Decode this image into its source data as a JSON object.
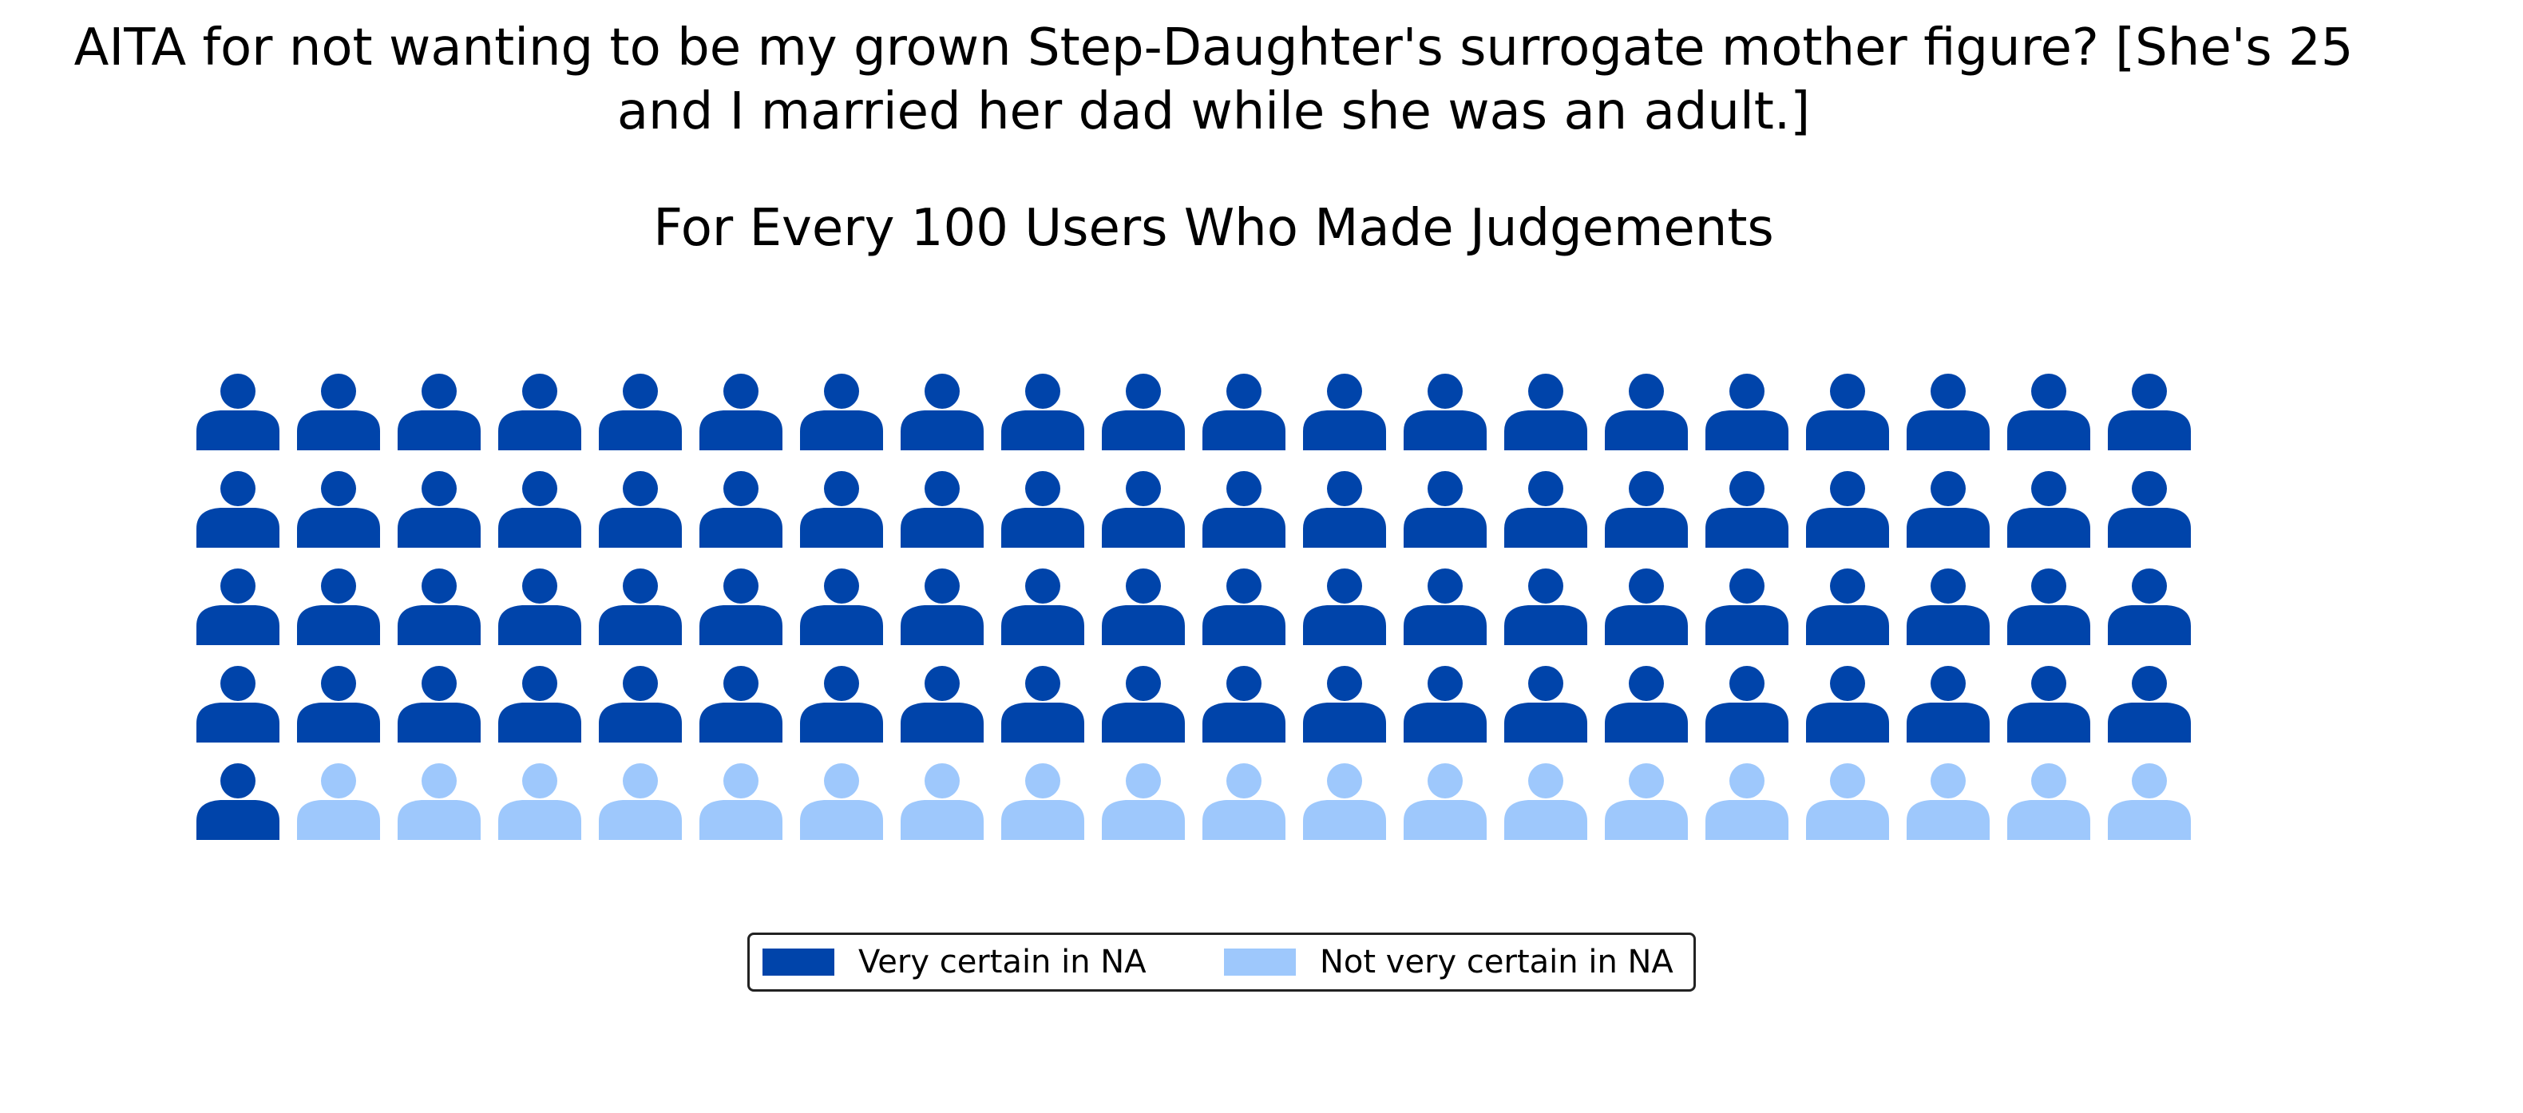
{
  "title": {
    "line1": "AITA for not wanting to be my grown Step-Daughter's surrogate mother figure? [She's 25",
    "line2": "and I married her dad while she was an adult.]"
  },
  "subtitle": "For Every 100 Users Who Made Judgements",
  "chart_data": {
    "type": "waffle",
    "unit": "person-icon",
    "total": 100,
    "rows": 5,
    "columns": 20,
    "fill_order": "row-major",
    "categories": [
      "Very certain in NA",
      "Not very certain in NA"
    ],
    "values": [
      81,
      19
    ],
    "colors": [
      "#0044AA",
      "#9EC8FC"
    ],
    "legend": {
      "placement": "bottom-center",
      "columns": 2
    }
  }
}
